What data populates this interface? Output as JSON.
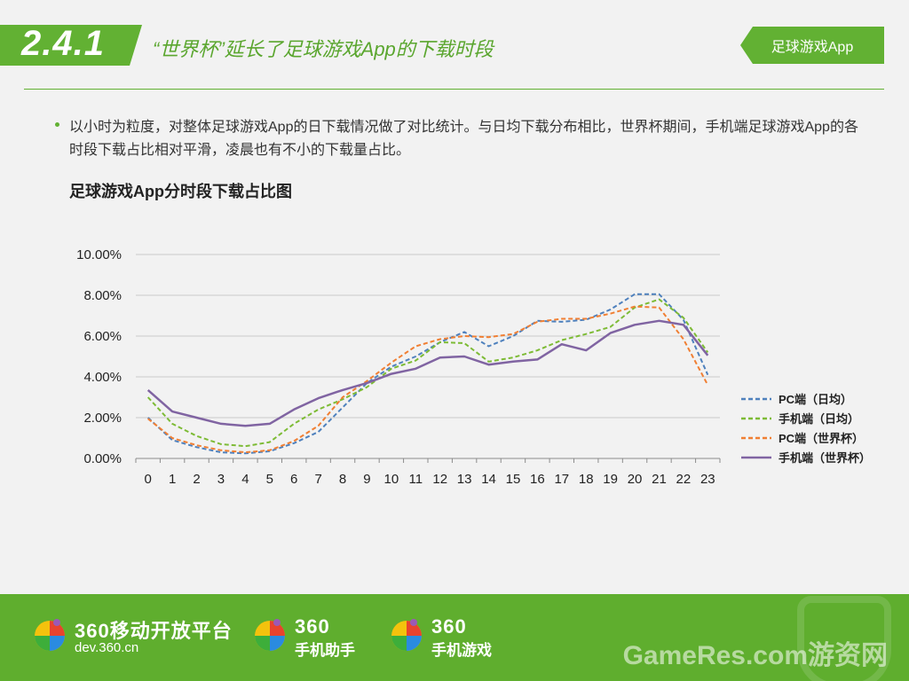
{
  "header": {
    "section_number": "2.4.1",
    "title": "“世界杯”延长了足球游戏App的下载时段",
    "tag": "足球游戏App"
  },
  "description": "以小时为粒度，对整体足球游戏App的日下载情况做了对比统计。与日均下载分布相比，世界杯期间，手机端足球游戏App的各时段下载占比相对平滑，凌晨也有不小的下载量占比。",
  "chart_data": {
    "type": "line",
    "title": "足球游戏App分时段下载占比图",
    "x": [
      "0",
      "1",
      "2",
      "3",
      "4",
      "5",
      "6",
      "7",
      "8",
      "9",
      "10",
      "11",
      "12",
      "13",
      "14",
      "15",
      "16",
      "17",
      "18",
      "19",
      "20",
      "21",
      "22",
      "23"
    ],
    "y_ticks": [
      "0.00%",
      "2.00%",
      "4.00%",
      "6.00%",
      "8.00%",
      "10.00%"
    ],
    "ylim": [
      0,
      10
    ],
    "grid": true,
    "legend_position": "right",
    "series": [
      {
        "name": "PC端（日均）",
        "color": "#4f81bd",
        "dash": true,
        "values": [
          2.0,
          0.9,
          0.55,
          0.3,
          0.25,
          0.35,
          0.75,
          1.3,
          2.5,
          3.7,
          4.5,
          5.0,
          5.7,
          6.2,
          5.5,
          6.0,
          6.75,
          6.7,
          6.8,
          7.3,
          8.05,
          8.05,
          6.8,
          4.1
        ]
      },
      {
        "name": "手机端（日均）",
        "color": "#7dbb35",
        "dash": true,
        "values": [
          3.0,
          1.7,
          1.1,
          0.7,
          0.6,
          0.8,
          1.7,
          2.4,
          2.9,
          3.5,
          4.4,
          4.8,
          5.7,
          5.65,
          4.75,
          4.95,
          5.3,
          5.8,
          6.1,
          6.45,
          7.4,
          7.8,
          6.9,
          5.2
        ]
      },
      {
        "name": "PC端（世界杯）",
        "color": "#f07f33",
        "dash": true,
        "values": [
          1.95,
          1.0,
          0.65,
          0.4,
          0.3,
          0.4,
          0.85,
          1.6,
          3.0,
          3.8,
          4.7,
          5.5,
          5.85,
          6.0,
          5.95,
          6.1,
          6.7,
          6.85,
          6.85,
          7.1,
          7.45,
          7.4,
          5.85,
          3.6
        ]
      },
      {
        "name": "手机端（世界杯）",
        "color": "#8064a2",
        "dash": false,
        "values": [
          3.35,
          2.3,
          2.0,
          1.7,
          1.6,
          1.7,
          2.4,
          2.95,
          3.35,
          3.7,
          4.15,
          4.4,
          4.95,
          5.0,
          4.6,
          4.75,
          4.85,
          5.6,
          5.3,
          6.15,
          6.55,
          6.75,
          6.55,
          5.05
        ]
      }
    ]
  },
  "footer": {
    "logo1_line1": "360移动开放平台",
    "logo1_line2": "dev.360.cn",
    "logo2_line1": "360",
    "logo2_line2": "手机助手",
    "logo3_line1": "360",
    "logo3_line2": "手机游戏",
    "watermark": "GameRes.com游资网"
  }
}
